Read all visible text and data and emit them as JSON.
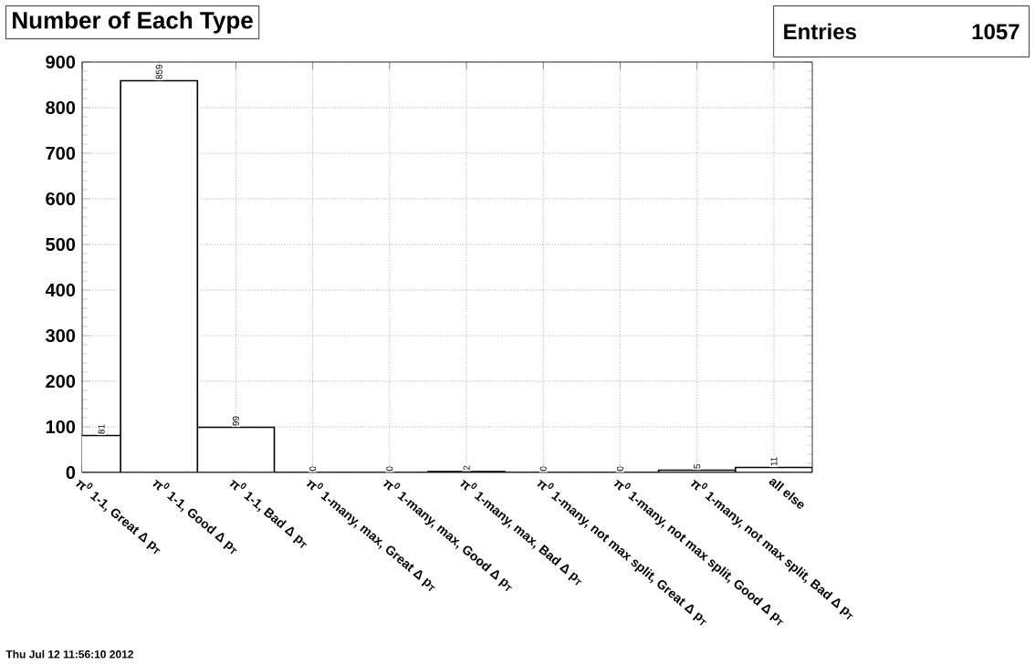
{
  "chart_data": {
    "type": "bar",
    "title": "Number of Each Type",
    "categories": [
      "π$^{0}$ 1-1, Great Δ p$_{T}$",
      "π$^{0}$ 1-1, Good Δ p$_{T}$",
      "π$^{0}$ 1-1, Bad Δ p$_{T}$",
      "π$^{0}$ 1-many, max, Great Δ p$_{T}$",
      "π$^{0}$ 1-many, max, Good Δ p$_{T}$",
      "π$^{0}$ 1-many, max, Bad Δ p$_{T}$",
      "π$^{0}$ 1-many, not max split, Great Δ p$_{T}$",
      "π$^{0}$ 1-many, not max split, Good Δ p$_{T}$",
      "π$^{0}$ 1-many, not max split, Bad Δ p$_{T}$",
      "all else"
    ],
    "values": [
      81,
      859,
      99,
      0,
      0,
      2,
      0,
      0,
      5,
      11
    ],
    "color": "#ffffff",
    "data_labels": true,
    "ylim": [
      0,
      900
    ],
    "yticks": [
      0,
      100,
      200,
      300,
      400,
      500,
      600,
      700,
      800,
      900
    ],
    "grid": true,
    "annotations": [
      "Entries",
      "1057",
      "Thu Jul 12 11:56:10 2012"
    ]
  }
}
